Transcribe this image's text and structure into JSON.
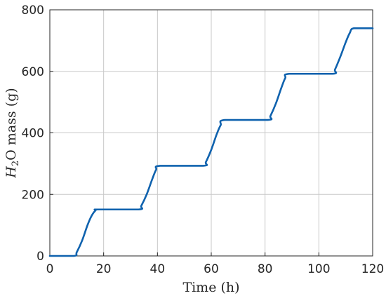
{
  "chart_data": {
    "type": "line",
    "title": "",
    "xlabel": "Time (h)",
    "ylabel": {
      "italic_part": "H",
      "subscript": "2",
      "rest": "O mass (g)"
    },
    "xlim": [
      0,
      120
    ],
    "ylim": [
      0,
      800
    ],
    "xticks": [
      "0",
      "20",
      "40",
      "60",
      "80",
      "100",
      "120"
    ],
    "yticks": [
      "0",
      "200",
      "400",
      "600",
      "800"
    ],
    "grid": true,
    "legend": "none",
    "series": [
      {
        "color": "#0f62ae",
        "points": [
          [
            0,
            0
          ],
          [
            9,
            0
          ],
          [
            10,
            12
          ],
          [
            12,
            50
          ],
          [
            14,
            100
          ],
          [
            15.5,
            130
          ],
          [
            17,
            148
          ],
          [
            18,
            151
          ],
          [
            33,
            151
          ],
          [
            34,
            163
          ],
          [
            36,
            200
          ],
          [
            38,
            248
          ],
          [
            39.5,
            280
          ],
          [
            41,
            293
          ],
          [
            57,
            293
          ],
          [
            58,
            305
          ],
          [
            60,
            345
          ],
          [
            62,
            395
          ],
          [
            63.5,
            425
          ],
          [
            65,
            442
          ],
          [
            81,
            442
          ],
          [
            82,
            455
          ],
          [
            84,
            495
          ],
          [
            86,
            545
          ],
          [
            87.5,
            578
          ],
          [
            89,
            592
          ],
          [
            105,
            592
          ],
          [
            106,
            606
          ],
          [
            108,
            648
          ],
          [
            110,
            695
          ],
          [
            111.5,
            725
          ],
          [
            113,
            740
          ],
          [
            120,
            740
          ]
        ]
      }
    ]
  }
}
